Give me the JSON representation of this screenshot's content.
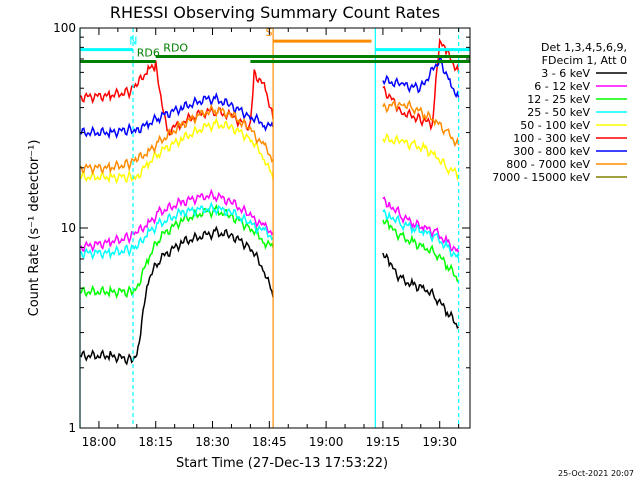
{
  "chart_data": {
    "type": "line",
    "title": "RHESSI Observing Summary Count Rates",
    "xlabel": "Start Time (27-Dec-13 17:53:22)",
    "ylabel": "Count Rate (s⁻¹ detector⁻¹)",
    "x_unit": "minutes",
    "xlim": [
      -5,
      98
    ],
    "ylim": [
      1,
      100
    ],
    "y_scale": "log",
    "x_ticks": [
      {
        "value": 0,
        "label": "18:00"
      },
      {
        "value": 15,
        "label": "18:15"
      },
      {
        "value": 30,
        "label": "18:30"
      },
      {
        "value": 45,
        "label": "18:45"
      },
      {
        "value": 60,
        "label": "19:00"
      },
      {
        "value": 75,
        "label": "19:15"
      },
      {
        "value": 90,
        "label": "19:30"
      }
    ],
    "y_ticks": [
      {
        "value": 1,
        "label": "1"
      },
      {
        "value": 10,
        "label": "10"
      },
      {
        "value": 100,
        "label": "100"
      }
    ],
    "legend_header": [
      "Det 1,3,4,5,6,9,",
      "FDecim 1, Att 0"
    ],
    "legend_placement": "right",
    "series": [
      {
        "name": "3 - 6 keV",
        "color": "#000000",
        "segments": [
          [
            [
              -5,
              2.3
            ],
            [
              3,
              2.3
            ],
            [
              8,
              2.2
            ],
            [
              10,
              2.3
            ],
            [
              13,
              5.5
            ],
            [
              16,
              7.0
            ],
            [
              22,
              8.5
            ],
            [
              28,
              9.2
            ],
            [
              31,
              9.5
            ],
            [
              35,
              9.2
            ],
            [
              40,
              8.0
            ],
            [
              44,
              6.0
            ],
            [
              46,
              4.5
            ]
          ],
          [
            [
              75,
              7.5
            ],
            [
              77,
              6.5
            ],
            [
              80,
              5.5
            ],
            [
              83,
              5.2
            ],
            [
              86,
              5.0
            ],
            [
              89,
              4.5
            ],
            [
              92,
              3.8
            ],
            [
              95,
              3.2
            ]
          ]
        ]
      },
      {
        "name": "6 - 12 keV",
        "color": "#ff00ff",
        "segments": [
          [
            [
              -5,
              8.0
            ],
            [
              3,
              8.5
            ],
            [
              8,
              9.0
            ],
            [
              10,
              9.5
            ],
            [
              13,
              10.5
            ],
            [
              16,
              12.0
            ],
            [
              22,
              13.5
            ],
            [
              28,
              14.5
            ],
            [
              31,
              14.5
            ],
            [
              35,
              13.5
            ],
            [
              40,
              11.5
            ],
            [
              44,
              10.0
            ],
            [
              46,
              9.5
            ]
          ],
          [
            [
              75,
              14.0
            ],
            [
              77,
              13.0
            ],
            [
              80,
              11.5
            ],
            [
              83,
              10.5
            ],
            [
              86,
              10.0
            ],
            [
              89,
              9.5
            ],
            [
              92,
              8.5
            ],
            [
              95,
              7.5
            ]
          ]
        ]
      },
      {
        "name": "12 - 25 keV",
        "color": "#00ff00",
        "segments": [
          [
            [
              -5,
              4.8
            ],
            [
              3,
              4.8
            ],
            [
              8,
              4.8
            ],
            [
              10,
              5.0
            ],
            [
              13,
              7.0
            ],
            [
              16,
              9.0
            ],
            [
              22,
              11.0
            ],
            [
              28,
              12.0
            ],
            [
              31,
              12.2
            ],
            [
              35,
              11.5
            ],
            [
              40,
              10.0
            ],
            [
              44,
              8.5
            ],
            [
              46,
              8.0
            ]
          ],
          [
            [
              75,
              11.0
            ],
            [
              77,
              10.0
            ],
            [
              80,
              9.0
            ],
            [
              83,
              8.5
            ],
            [
              86,
              8.0
            ],
            [
              89,
              7.5
            ],
            [
              92,
              6.5
            ],
            [
              95,
              5.5
            ]
          ]
        ]
      },
      {
        "name": "25 - 50 keV",
        "color": "#00ffff",
        "segments": [
          [
            [
              -5,
              7.5
            ],
            [
              3,
              7.5
            ],
            [
              8,
              7.8
            ],
            [
              10,
              8.0
            ],
            [
              13,
              9.5
            ],
            [
              16,
              10.5
            ],
            [
              22,
              12.0
            ],
            [
              28,
              12.5
            ],
            [
              31,
              12.5
            ],
            [
              35,
              12.0
            ],
            [
              40,
              10.5
            ],
            [
              44,
              9.5
            ],
            [
              46,
              9.0
            ]
          ],
          [
            [
              75,
              12.0
            ],
            [
              77,
              11.5
            ],
            [
              80,
              10.5
            ],
            [
              83,
              10.0
            ],
            [
              86,
              9.5
            ],
            [
              89,
              9.0
            ],
            [
              92,
              8.0
            ],
            [
              95,
              7.0
            ]
          ]
        ]
      },
      {
        "name": "50 - 100 keV",
        "color": "#ffff00",
        "segments": [
          [
            [
              -5,
              18.0
            ],
            [
              3,
              18.0
            ],
            [
              8,
              18.0
            ],
            [
              10,
              18.0
            ],
            [
              13,
              21.0
            ],
            [
              16,
              24.0
            ],
            [
              22,
              28.0
            ],
            [
              28,
              32.0
            ],
            [
              31,
              33.0
            ],
            [
              35,
              32.0
            ],
            [
              40,
              28.0
            ],
            [
              44,
              22.0
            ],
            [
              46,
              17.5
            ]
          ],
          [
            [
              75,
              28.0
            ],
            [
              80,
              27.0
            ],
            [
              83,
              26.0
            ],
            [
              86,
              25.0
            ],
            [
              89,
              23.0
            ],
            [
              92,
              20.0
            ],
            [
              95,
              18.5
            ]
          ]
        ]
      },
      {
        "name": "100 - 300 keV",
        "color": "#ff0000",
        "segments": [
          [
            [
              -5,
              45.0
            ],
            [
              3,
              46.0
            ],
            [
              8,
              48.0
            ],
            [
              10,
              52.0
            ],
            [
              13,
              62.0
            ],
            [
              15,
              65.0
            ],
            [
              18,
              30.0
            ],
            [
              22,
              34.0
            ],
            [
              28,
              38.0
            ],
            [
              31,
              38.5
            ],
            [
              35,
              36.0
            ],
            [
              40,
              32.0
            ],
            [
              41,
              60.0
            ],
            [
              44,
              50.0
            ],
            [
              46,
              35.0
            ]
          ],
          [
            [
              75,
              50.0
            ],
            [
              80,
              38.0
            ],
            [
              85,
              35.0
            ],
            [
              88,
              33.0
            ],
            [
              90,
              85.0
            ],
            [
              92,
              75.0
            ],
            [
              95,
              60.0
            ]
          ]
        ]
      },
      {
        "name": "300 - 800 keV",
        "color": "#0000ff",
        "segments": [
          [
            [
              -5,
              30.0
            ],
            [
              3,
              30.0
            ],
            [
              8,
              31.0
            ],
            [
              10,
              31.0
            ],
            [
              13,
              33.0
            ],
            [
              16,
              36.0
            ],
            [
              22,
              40.0
            ],
            [
              28,
              44.0
            ],
            [
              31,
              44.0
            ],
            [
              35,
              41.0
            ],
            [
              40,
              36.0
            ],
            [
              44,
              33.0
            ],
            [
              46,
              32.0
            ]
          ],
          [
            [
              75,
              55.0
            ],
            [
              80,
              52.0
            ],
            [
              85,
              50.0
            ],
            [
              90,
              70.0
            ],
            [
              93,
              52.0
            ],
            [
              95,
              45.0
            ]
          ]
        ]
      },
      {
        "name": "800 - 7000 keV",
        "color": "#ff8c00",
        "segments": [
          [
            [
              -5,
              20.0
            ],
            [
              3,
              20.0
            ],
            [
              8,
              21.0
            ],
            [
              10,
              22.0
            ],
            [
              13,
              24.0
            ],
            [
              16,
              27.0
            ],
            [
              22,
              33.0
            ],
            [
              28,
              38.0
            ],
            [
              31,
              39.0
            ],
            [
              35,
              37.0
            ],
            [
              40,
              31.0
            ],
            [
              44,
              25.0
            ],
            [
              46,
              22.0
            ]
          ],
          [
            [
              75,
              40.0
            ],
            [
              80,
              42.0
            ],
            [
              83,
              40.0
            ],
            [
              86,
              37.0
            ],
            [
              89,
              34.0
            ],
            [
              92,
              30.0
            ],
            [
              95,
              26.0
            ]
          ]
        ]
      },
      {
        "name": "7000 - 15000 keV",
        "color": "#808000",
        "segments": []
      }
    ],
    "attenuator_segments": [
      {
        "label": "N",
        "color": "#00ffff",
        "x": [
          -5,
          9
        ],
        "y": 78,
        "label_x": 8
      },
      {
        "label": "RD6",
        "color": "#008000",
        "x": [
          -5,
          15
        ],
        "y": 68,
        "label_x": 10
      },
      {
        "label": "RDO",
        "color": "#008000",
        "x": [
          15,
          98
        ],
        "y": 72,
        "label_x": 17
      },
      {
        "label": "S",
        "color": "#ff8c00",
        "x": [
          46,
          72
        ],
        "y": 86,
        "label_x": 44
      },
      {
        "label": "",
        "color": "#008000",
        "x": [
          40,
          98
        ],
        "y": 68,
        "label_x": null
      },
      {
        "label": "",
        "color": "#00ffff",
        "x": [
          73,
          98
        ],
        "y": 78,
        "label_x": null
      }
    ],
    "vertical_markers": [
      {
        "x": -5,
        "color": "#00ffff",
        "style": "solid"
      },
      {
        "x": 9,
        "color": "#00ffff",
        "style": "dashed"
      },
      {
        "x": 46,
        "color": "#ff8c00",
        "style": "solid"
      },
      {
        "x": 73,
        "color": "#00ffff",
        "style": "solid"
      },
      {
        "x": 95,
        "color": "#00ffff",
        "style": "dashed"
      }
    ],
    "timestamp": "25-Oct-2021 20:07"
  }
}
